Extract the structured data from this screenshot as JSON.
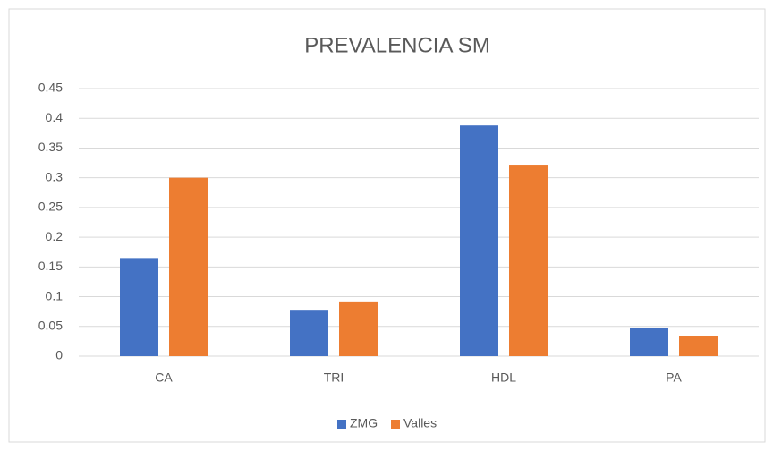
{
  "chart_data": {
    "type": "bar",
    "title": "PREVALENCIA SM",
    "categories": [
      "CA",
      "TRI",
      "HDL",
      "PA"
    ],
    "series": [
      {
        "name": "ZMG",
        "color": "#4472c4",
        "values": [
          0.165,
          0.078,
          0.388,
          0.048
        ]
      },
      {
        "name": "Valles",
        "color": "#ed7d31",
        "values": [
          0.3,
          0.092,
          0.322,
          0.034
        ]
      }
    ],
    "ylim": [
      0,
      0.45
    ],
    "yticks": [
      0,
      0.05,
      0.1,
      0.15,
      0.2,
      0.25,
      0.3,
      0.35,
      0.4,
      0.45
    ],
    "grid": true,
    "legend": "bottom"
  }
}
